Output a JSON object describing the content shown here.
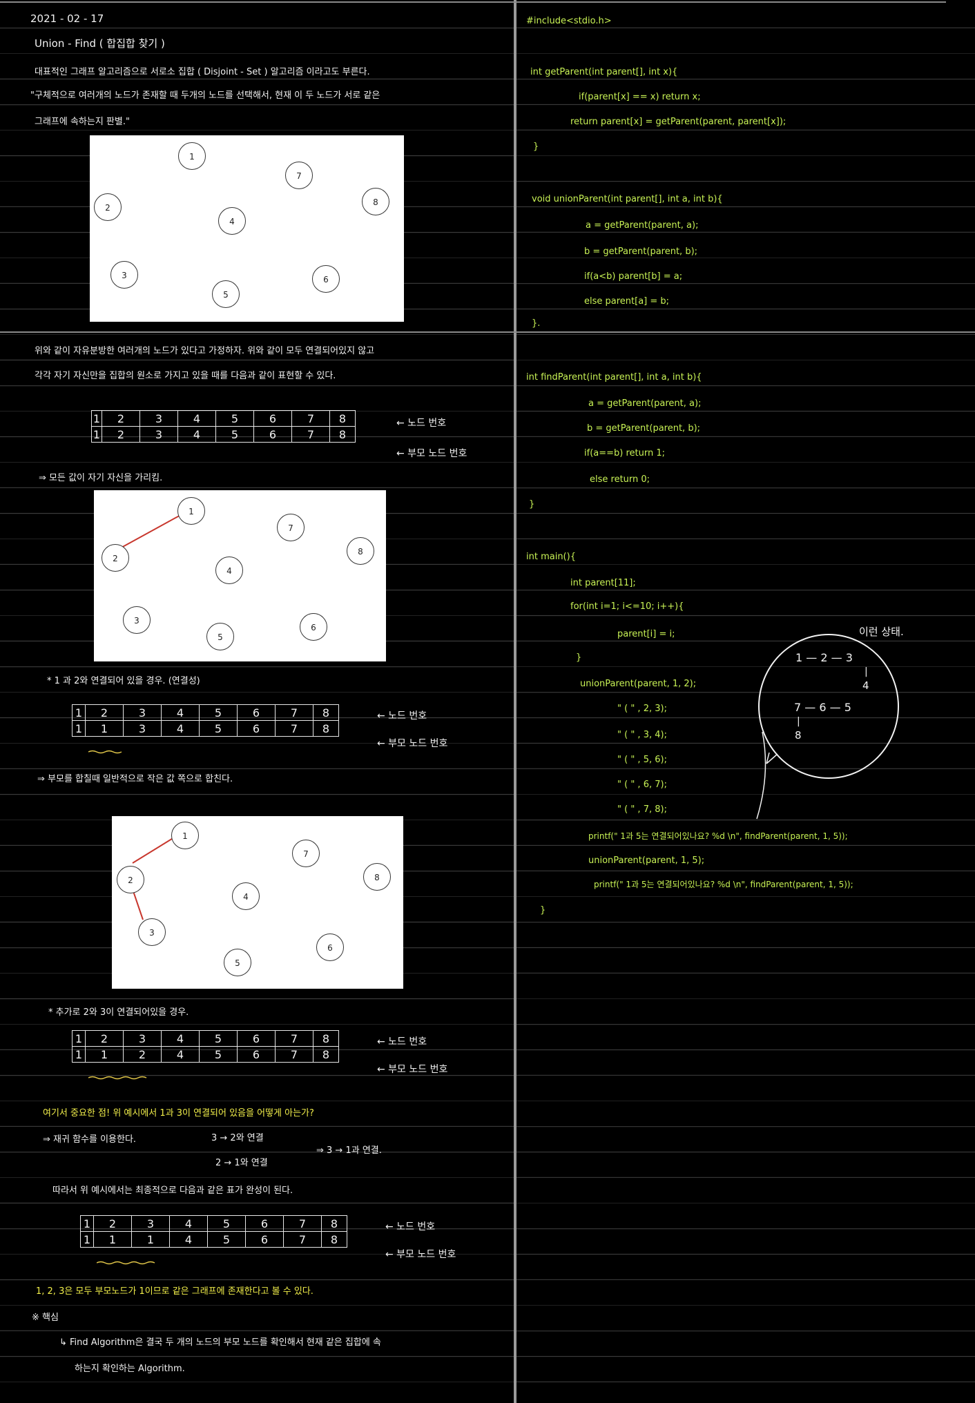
{
  "left": {
    "date": "2021 - 02 - 17",
    "title": "Union - Find ( 합집합 찾기 )",
    "intro1": "대표적인 그래프 알고리즘으로 서로소 집합 ( Disjoint - Set ) 알고리즘 이라고도 부른다.",
    "intro2": "\"구체적으로 여러개의 노드가 존재할 때 두개의 노드를 선택해서, 현재 이 두 노드가 서로 같은",
    "intro3": "그래프에 속하는지 판별.\"",
    "assume1": "위와 같이 자유분방한 여러개의 노드가 있다고 가정하자. 위와 같이 모두 연결되어있지 않고",
    "assume2": "각각 자기 자신만을 집합의 원소로 가지고 있을 때를 다음과 같이 표현할 수 있다.",
    "arrow_all_self": "⇒ 모든 값이 자기 자신을 가리킴.",
    "star_1_2": "* 1 과 2와 연결되어 있을 경우. (연결성)",
    "parent_rule": "⇒ 부모를 합칠때 일반적으로 작은 값 쪽으로 합친다.",
    "star_2_3": "* 추가로 2와 3이 연결되어있을 경우.",
    "important": "여기서 중요한 점! 위 예시에서 1과 3이 연결되어 있음을 어떻게 아는가?",
    "recursion": "⇒ 재귀 함수를 이용한다.",
    "rec_a": "3 → 2와 연결",
    "rec_b": "2 → 1와 연결",
    "rec_c": "⇒ 3 → 1과 연결.",
    "therefore": "따라서 위 예시에서는 최종적으로 다음과 같은 표가 완성이 된다.",
    "conclusion": "1, 2, 3은 모두 부모노드가 1이므로 같은 그래프에 존재한다고 볼 수 있다.",
    "core_label": "※ 핵심",
    "core1": "↳ Find Algorithm은 결국 두 개의 노드의 부모 노드를 확인해서 현재 같은 집합에 속",
    "core2": "하는지 확인하는 Algorithm.",
    "row_label_node": "← 노드 번호",
    "row_label_parent": "← 부모 노드 번호",
    "node_labels": [
      "1",
      "2",
      "3",
      "4",
      "5",
      "6",
      "7",
      "8"
    ],
    "table1_parent": [
      "1",
      "2",
      "3",
      "4",
      "5",
      "6",
      "7",
      "8"
    ],
    "table2_parent": [
      "1",
      "1",
      "3",
      "4",
      "5",
      "6",
      "7",
      "8"
    ],
    "table3_parent": [
      "1",
      "1",
      "2",
      "4",
      "5",
      "6",
      "7",
      "8"
    ],
    "table4_parent": [
      "1",
      "1",
      "1",
      "4",
      "5",
      "6",
      "7",
      "8"
    ]
  },
  "right": {
    "include": "#include<stdio.h>",
    "gp1": "int getParent(int parent[], int x){",
    "gp2": "if(parent[x] == x) return x;",
    "gp3": "return parent[x] = getParent(parent, parent[x]);",
    "close1": "}",
    "up1": "void unionParent(int parent[], int a, int b){",
    "up2": "a = getParent(parent, a);",
    "up3": "b = getParent(parent, b);",
    "up4": "if(a<b) parent[b] = a;",
    "up5": "else parent[a] = b;",
    "close2": "}.",
    "fp1": "int findParent(int parent[], int a, int b){",
    "fp2": "a = getParent(parent, a);",
    "fp3": "b = getParent(parent, b);",
    "fp4": "if(a==b) return 1;",
    "fp5": "else return 0;",
    "close3": "}",
    "m1": "int main(){",
    "m2": "int parent[11];",
    "m3": "for(int i=1; i<=10; i++){",
    "m4": "parent[i] = i;",
    "m5": "}",
    "m6": "unionParent(parent, 1, 2);",
    "m7": "\"   ( \"   , 2, 3);",
    "m8": "\"   ( \"   , 3, 4);",
    "m9": "\"   ( \"   , 5, 6);",
    "m10": "\"   ( \"   , 6, 7);",
    "m11": "\"   ( \"   , 7, 8);",
    "m12": "printf(\" 1과 5는 연결되어있나요? %d \\n\", findParent(parent, 1, 5));",
    "m13": "unionParent(parent, 1, 5);",
    "m14": "printf(\" 1과 5는 연결되어있나요? %d \\n\", findParent(parent, 1, 5));",
    "close4": "}",
    "note_title": "이런 상태.",
    "note_row1": "1 — 2 — 3",
    "note_v1": "|",
    "note_4": "4",
    "note_row2": "7 — 6 — 5",
    "note_v2": "|",
    "note_8": "8"
  }
}
